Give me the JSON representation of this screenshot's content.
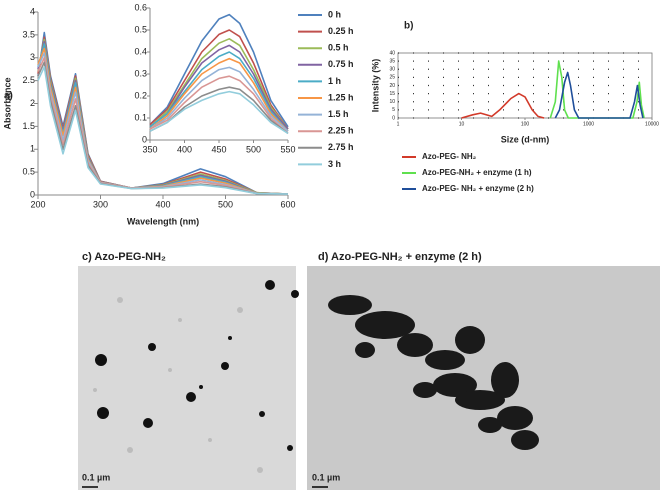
{
  "chart_data": [
    {
      "type": "line",
      "label": "a)",
      "y_label": "Absorbance",
      "x_label": "Wavelength (nm)",
      "x": [
        200,
        210,
        220,
        240,
        260,
        280,
        300,
        350,
        400,
        460,
        500,
        550,
        600
      ],
      "xlim": [
        200,
        600
      ],
      "xticks": [
        200,
        300,
        400,
        500,
        600
      ],
      "ylim": [
        0,
        4
      ],
      "yticks": [
        0,
        0.5,
        1,
        1.5,
        2,
        2.5,
        3,
        3.5,
        4
      ],
      "legend": "right",
      "series": [
        {
          "name": "0 h",
          "color": "#4f81bd",
          "values": [
            2.6,
            3.55,
            2.6,
            1.5,
            2.65,
            0.9,
            0.3,
            0.15,
            0.25,
            0.57,
            0.4,
            0.05,
            0.02
          ]
        },
        {
          "name": "0.25 h",
          "color": "#c0504d",
          "values": [
            2.65,
            3.45,
            2.55,
            1.45,
            2.6,
            0.88,
            0.3,
            0.15,
            0.23,
            0.5,
            0.35,
            0.05,
            0.02
          ]
        },
        {
          "name": "0.5 h",
          "color": "#9bbb59",
          "values": [
            2.7,
            3.4,
            2.5,
            1.4,
            2.55,
            0.85,
            0.29,
            0.15,
            0.22,
            0.46,
            0.32,
            0.05,
            0.02
          ]
        },
        {
          "name": "0.75 h",
          "color": "#8064a2",
          "values": [
            2.75,
            3.35,
            2.45,
            1.4,
            2.5,
            0.83,
            0.29,
            0.15,
            0.21,
            0.43,
            0.3,
            0.04,
            0.02
          ]
        },
        {
          "name": "1 h",
          "color": "#4bacc6",
          "values": [
            2.8,
            3.3,
            2.4,
            1.35,
            2.45,
            0.8,
            0.28,
            0.15,
            0.2,
            0.4,
            0.28,
            0.04,
            0.02
          ]
        },
        {
          "name": "1.25 h",
          "color": "#f79646",
          "values": [
            2.85,
            3.2,
            2.35,
            1.3,
            2.35,
            0.78,
            0.28,
            0.15,
            0.19,
            0.37,
            0.26,
            0.04,
            0.02
          ]
        },
        {
          "name": "1.5 h",
          "color": "#95b3d7",
          "values": [
            2.8,
            3.1,
            2.25,
            1.2,
            2.25,
            0.75,
            0.27,
            0.15,
            0.18,
            0.33,
            0.23,
            0.04,
            0.02
          ]
        },
        {
          "name": "2.25 h",
          "color": "#d99694",
          "values": [
            2.7,
            3.0,
            2.15,
            1.1,
            2.1,
            0.7,
            0.26,
            0.15,
            0.17,
            0.29,
            0.21,
            0.03,
            0.02
          ]
        },
        {
          "name": "2.75 h",
          "color": "#8c8c8c",
          "values": [
            2.6,
            2.9,
            2.05,
            1.0,
            1.95,
            0.65,
            0.25,
            0.14,
            0.16,
            0.24,
            0.18,
            0.03,
            0.02
          ]
        },
        {
          "name": "3 h",
          "color": "#92cddc",
          "values": [
            2.5,
            2.8,
            1.95,
            0.9,
            1.85,
            0.6,
            0.24,
            0.14,
            0.15,
            0.22,
            0.16,
            0.03,
            0.02
          ]
        }
      ]
    },
    {
      "type": "line",
      "x": [
        350,
        375,
        400,
        425,
        450,
        465,
        480,
        500,
        525,
        550
      ],
      "xlim": [
        350,
        550
      ],
      "xticks": [
        350,
        400,
        450,
        500,
        550
      ],
      "ylim": [
        0,
        0.6
      ],
      "yticks": [
        0,
        0.1,
        0.2,
        0.3,
        0.4,
        0.5,
        0.6
      ],
      "series": [
        {
          "color": "#4f81bd",
          "values": [
            0.07,
            0.15,
            0.3,
            0.45,
            0.55,
            0.57,
            0.53,
            0.4,
            0.18,
            0.06
          ]
        },
        {
          "color": "#c0504d",
          "values": [
            0.07,
            0.14,
            0.27,
            0.4,
            0.48,
            0.5,
            0.47,
            0.35,
            0.16,
            0.05
          ]
        },
        {
          "color": "#9bbb59",
          "values": [
            0.06,
            0.13,
            0.25,
            0.37,
            0.44,
            0.46,
            0.43,
            0.32,
            0.15,
            0.05
          ]
        },
        {
          "color": "#8064a2",
          "values": [
            0.06,
            0.12,
            0.24,
            0.35,
            0.41,
            0.43,
            0.4,
            0.3,
            0.14,
            0.05
          ]
        },
        {
          "color": "#4bacc6",
          "values": [
            0.06,
            0.12,
            0.22,
            0.32,
            0.38,
            0.4,
            0.37,
            0.28,
            0.13,
            0.04
          ]
        },
        {
          "color": "#f79646",
          "values": [
            0.05,
            0.11,
            0.21,
            0.3,
            0.35,
            0.37,
            0.35,
            0.26,
            0.12,
            0.04
          ]
        },
        {
          "color": "#95b3d7",
          "values": [
            0.05,
            0.1,
            0.19,
            0.27,
            0.32,
            0.33,
            0.31,
            0.23,
            0.11,
            0.04
          ]
        },
        {
          "color": "#d99694",
          "values": [
            0.05,
            0.09,
            0.17,
            0.24,
            0.28,
            0.29,
            0.27,
            0.21,
            0.1,
            0.03
          ]
        },
        {
          "color": "#8c8c8c",
          "values": [
            0.04,
            0.08,
            0.15,
            0.2,
            0.23,
            0.24,
            0.23,
            0.18,
            0.09,
            0.03
          ]
        },
        {
          "color": "#92cddc",
          "values": [
            0.04,
            0.08,
            0.14,
            0.18,
            0.21,
            0.22,
            0.21,
            0.16,
            0.08,
            0.03
          ]
        }
      ]
    },
    {
      "type": "line",
      "label": "b)",
      "y_label": "Intensity (%)",
      "x_label": "Size (d-nm)",
      "xscale": "log",
      "xlim": [
        1,
        10000
      ],
      "xticks": [
        1,
        10,
        100,
        1000,
        10000
      ],
      "ylim": [
        0,
        40
      ],
      "yticks": [
        0,
        5,
        10,
        15,
        20,
        25,
        30,
        35,
        40
      ],
      "grid": true,
      "legend": "bottom",
      "series": [
        {
          "name": "Azo-PEG- NH₂",
          "color": "#d23a2a",
          "x": [
            10,
            15,
            20,
            30,
            40,
            60,
            80,
            100,
            130,
            160,
            200
          ],
          "values": [
            0,
            2,
            3,
            1,
            5,
            12,
            15,
            13,
            5,
            1,
            0
          ]
        },
        {
          "name": "Azo-PEG-NH₂ + enzyme (1 h)",
          "color": "#5fe04e",
          "x": [
            250,
            300,
            340,
            380,
            420,
            480,
            5000,
            5800,
            6300,
            6800,
            7500
          ],
          "values": [
            0,
            10,
            35,
            25,
            5,
            0,
            0,
            10,
            22,
            8,
            0
          ]
        },
        {
          "name": "Azo-PEG- NH₂ + enzyme (2 h)",
          "color": "#1f4e9a",
          "x": [
            300,
            350,
            420,
            470,
            520,
            600,
            700,
            4500,
            5300,
            5900,
            6500,
            7200
          ],
          "values": [
            0,
            5,
            22,
            28,
            20,
            5,
            0,
            0,
            10,
            20,
            8,
            0
          ]
        }
      ]
    }
  ],
  "images": [
    {
      "label": "c) Azo-PEG-NH₂",
      "scale_bar": "0.1 µm"
    },
    {
      "label": "d) Azo-PEG-NH₂ + enzyme (2 h)",
      "scale_bar": "0.1 µm"
    }
  ]
}
